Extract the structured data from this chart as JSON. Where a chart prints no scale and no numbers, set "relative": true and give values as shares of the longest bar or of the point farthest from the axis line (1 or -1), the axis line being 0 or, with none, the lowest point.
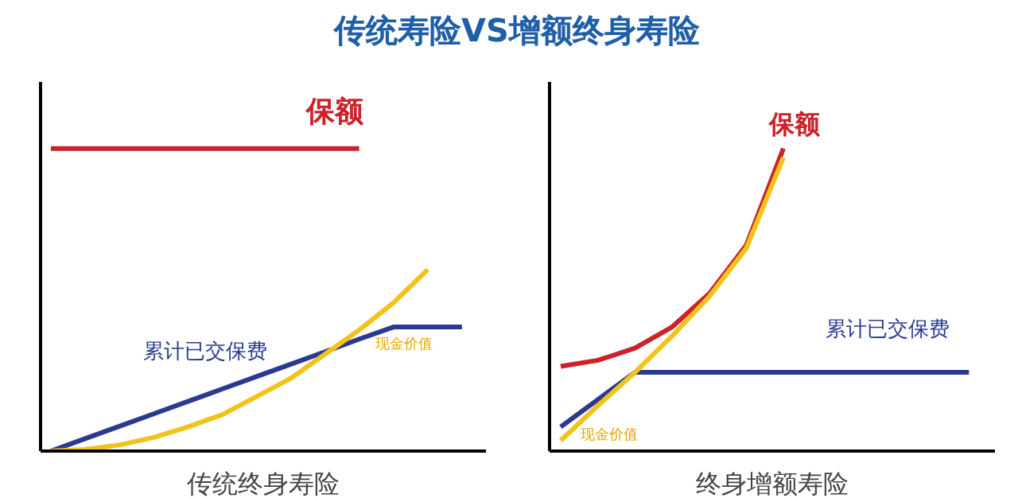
{
  "chart_data": [
    {
      "type": "line",
      "title": "传统寿险VS增额终身寿险",
      "xlabel": "传统终身寿险",
      "relative": true,
      "grid": false,
      "marker": "none",
      "categories": [
        null,
        null,
        null,
        null,
        null,
        null,
        null,
        null,
        null,
        null,
        null,
        null,
        null
      ],
      "series": [
        {
          "name": "保额",
          "color": "#cc2229",
          "values": [
            1,
            1,
            1,
            1,
            1,
            1,
            1,
            1,
            1,
            1,
            null,
            null,
            null
          ]
        },
        {
          "name": "累计已交保费",
          "color": "#2b3990",
          "values": [
            0,
            0.041,
            0.082,
            0.123,
            0.164,
            0.205,
            0.246,
            0.287,
            0.328,
            0.37,
            0.41,
            0.41,
            0.41
          ]
        },
        {
          "name": "现金价值",
          "color": "#f2c31a",
          "values": [
            0,
            0.005,
            0.02,
            0.045,
            0.08,
            0.12,
            0.18,
            0.24,
            0.32,
            0.4,
            0.49,
            0.6,
            null
          ]
        }
      ]
    },
    {
      "type": "line",
      "xlabel": "终身增额寿险",
      "relative": true,
      "grid": false,
      "marker": "none",
      "categories": [
        null,
        null,
        null,
        null,
        null,
        null,
        null,
        null,
        null,
        null,
        null,
        null
      ],
      "series": [
        {
          "name": "保额",
          "color": "#cc2229",
          "values": [
            0.28,
            0.3,
            0.34,
            0.41,
            0.52,
            0.68,
            1,
            null,
            null,
            null,
            null,
            null
          ]
        },
        {
          "name": "累计已交保费",
          "color": "#2b3990",
          "values": [
            0.08,
            0.17,
            0.26,
            0.26,
            0.26,
            0.26,
            0.26,
            0.26,
            0.26,
            0.26,
            0.26,
            0.26
          ]
        },
        {
          "name": "现金价值",
          "color": "#f2c31a",
          "values": [
            0.035,
            0.15,
            0.26,
            0.38,
            0.51,
            0.67,
            0.97,
            null,
            null,
            null,
            null,
            null
          ]
        }
      ]
    }
  ]
}
